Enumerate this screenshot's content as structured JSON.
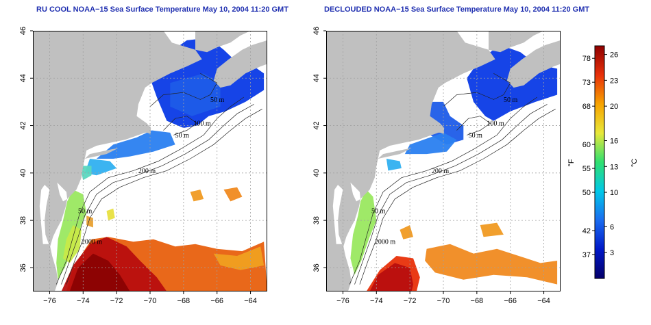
{
  "panels": [
    {
      "title": "RU COOL NOAA−15 Sea Surface Temperature May 10, 2004 11:20 GMT",
      "variant": "raw"
    },
    {
      "title": "DECLOUDED NOAA−15 Sea Surface Temperature May 10, 2004 11:20 GMT",
      "variant": "declouded"
    }
  ],
  "axes": {
    "x_ticks": [
      "−76",
      "−74",
      "−72",
      "−70",
      "−68",
      "−66",
      "−64"
    ],
    "x_values": [
      -76,
      -74,
      -72,
      -70,
      -68,
      -66,
      -64
    ],
    "y_ticks": [
      "36",
      "38",
      "40",
      "42",
      "44",
      "46"
    ],
    "y_values": [
      36,
      38,
      40,
      42,
      44,
      46
    ],
    "lon_range": [
      -77,
      -63
    ],
    "lat_range": [
      35,
      46
    ]
  },
  "contour_labels": [
    {
      "text": "200 m",
      "lon": -70.7,
      "lat": 40.0
    },
    {
      "text": "50 m",
      "lon": -74.3,
      "lat": 38.3
    },
    {
      "text": "2000 m",
      "lon": -74.1,
      "lat": 37.0
    },
    {
      "text": "50 m",
      "lon": -68.5,
      "lat": 41.5
    },
    {
      "text": "100 m",
      "lon": -67.4,
      "lat": 42.0
    },
    {
      "text": "50 m",
      "lon": -66.4,
      "lat": 43.0
    }
  ],
  "colorbar": {
    "units_f": "°F",
    "units_c": "°C",
    "range_c": [
      0,
      27
    ],
    "f_ticks": [
      "78",
      "73",
      "68",
      "60",
      "55",
      "50",
      "42",
      "37"
    ],
    "f_values": [
      78,
      73,
      68,
      60,
      55,
      50,
      42,
      37
    ],
    "c_ticks": [
      "26",
      "23",
      "20",
      "16",
      "13",
      "10",
      "6",
      "3"
    ],
    "c_values": [
      26,
      23,
      20,
      16,
      13,
      10,
      6,
      3
    ],
    "colors": [
      "#05006a",
      "#0018c8",
      "#1a6cf0",
      "#00c8e8",
      "#30e070",
      "#e8e83a",
      "#f7a300",
      "#e8300a",
      "#8e0000"
    ]
  },
  "colors": {
    "land": "#c0c0c0",
    "sea": "#ffffff",
    "grid": "#a0a0a0",
    "title": "#1f2fb0"
  }
}
